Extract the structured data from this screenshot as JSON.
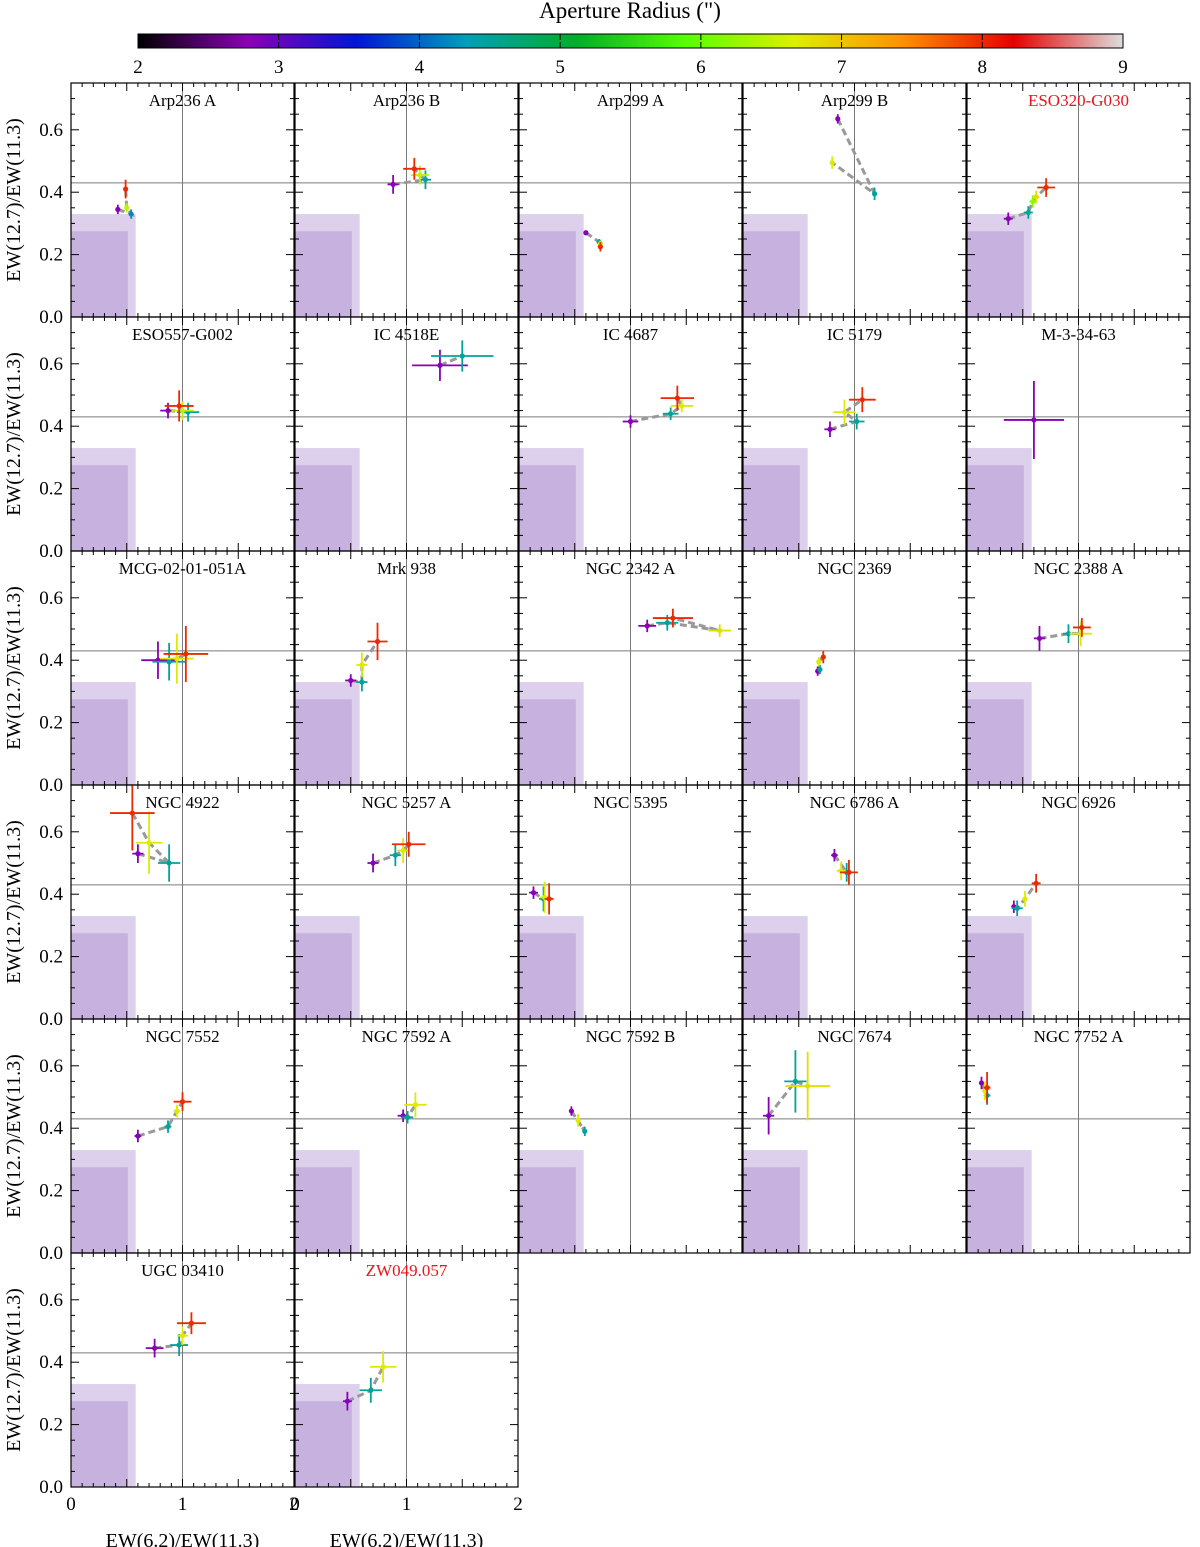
{
  "colorbar": {
    "label": "Aperture Radius (\")",
    "ticks": [
      "2",
      "3",
      "4",
      "5",
      "6",
      "7",
      "8",
      "9"
    ],
    "range": [
      2,
      9
    ],
    "colors": [
      "#000000",
      "#8b00b5",
      "#0015d8",
      "#00a0b8",
      "#00ad2a",
      "#56ff00",
      "#ddef00",
      "#ff8f00",
      "#e60000",
      "#dddddd"
    ]
  },
  "axes": {
    "xlabel": "EW(6.2)/EW(11.3)",
    "ylabel": "EW(12.7)/EW(11.3)",
    "xlim": [
      0,
      2
    ],
    "ylim": [
      0,
      0.75
    ],
    "xticks": [
      "0",
      "1",
      "2"
    ],
    "yticks": [
      "0.0",
      "0.2",
      "0.4",
      "0.6"
    ],
    "ref_x": 1.0,
    "ref_y": 0.43,
    "shade_outer": {
      "x_max": 0.58,
      "y_max": 0.33,
      "color": "#ddd0ec"
    },
    "shade_inner": {
      "x_max": 0.51,
      "y_max": 0.275,
      "color": "#c7b2df"
    },
    "connector_color": "#999999"
  },
  "chart_data": {
    "type": "scatter",
    "xlabel": "EW(6.2)/EW(11.3)",
    "ylabel": "EW(12.7)/EW(11.3)",
    "xlim": [
      0,
      2
    ],
    "ylim": [
      0,
      0.75
    ],
    "panels": [
      {
        "title": "Arp236 A",
        "title_color": "#000000",
        "points": [
          {
            "r": 2.8,
            "x": 0.42,
            "y": 0.345,
            "xerr": 0.02,
            "yerr": 0.015
          },
          {
            "r": 4.2,
            "x": 0.54,
            "y": 0.33,
            "xerr": 0.02,
            "yerr": 0.015
          },
          {
            "r": 6.5,
            "x": 0.5,
            "y": 0.35,
            "xerr": 0.02,
            "yerr": 0.015
          },
          {
            "r": 8.0,
            "x": 0.49,
            "y": 0.41,
            "xerr": 0.01,
            "yerr": 0.03
          }
        ]
      },
      {
        "title": "Arp236 B",
        "title_color": "#000000",
        "points": [
          {
            "r": 2.8,
            "x": 0.88,
            "y": 0.425,
            "xerr": 0.05,
            "yerr": 0.03
          },
          {
            "r": 4.5,
            "x": 1.17,
            "y": 0.44,
            "xerr": 0.05,
            "yerr": 0.03
          },
          {
            "r": 6.5,
            "x": 1.12,
            "y": 0.455,
            "xerr": 0.08,
            "yerr": 0.03
          },
          {
            "r": 8.0,
            "x": 1.07,
            "y": 0.475,
            "xerr": 0.1,
            "yerr": 0.035
          }
        ]
      },
      {
        "title": "Arp299 A",
        "title_color": "#000000",
        "points": [
          {
            "r": 2.8,
            "x": 0.6,
            "y": 0.27,
            "xerr": 0.01,
            "yerr": 0.005
          },
          {
            "r": 4.5,
            "x": 0.72,
            "y": 0.24,
            "xerr": 0.01,
            "yerr": 0.01
          },
          {
            "r": 6.5,
            "x": 0.73,
            "y": 0.235,
            "xerr": 0.01,
            "yerr": 0.01
          },
          {
            "r": 8.0,
            "x": 0.73,
            "y": 0.225,
            "xerr": 0.01,
            "yerr": 0.015
          }
        ]
      },
      {
        "title": "Arp299 B",
        "title_color": "#000000",
        "points": [
          {
            "r": 2.8,
            "x": 0.85,
            "y": 0.635,
            "xerr": 0.01,
            "yerr": 0.015
          },
          {
            "r": 4.5,
            "x": 1.18,
            "y": 0.395,
            "xerr": 0.01,
            "yerr": 0.02
          },
          {
            "r": 6.7,
            "x": 0.8,
            "y": 0.495,
            "xerr": 0.01,
            "yerr": 0.02
          }
        ]
      },
      {
        "title": "ESO320-G030",
        "title_color": "#e8141c",
        "points": [
          {
            "r": 2.8,
            "x": 0.37,
            "y": 0.315,
            "xerr": 0.04,
            "yerr": 0.02
          },
          {
            "r": 4.5,
            "x": 0.55,
            "y": 0.335,
            "xerr": 0.04,
            "yerr": 0.02
          },
          {
            "r": 6.2,
            "x": 0.59,
            "y": 0.37,
            "xerr": 0.03,
            "yerr": 0.02
          },
          {
            "r": 6.8,
            "x": 0.62,
            "y": 0.385,
            "xerr": 0.03,
            "yerr": 0.02
          },
          {
            "r": 8.0,
            "x": 0.71,
            "y": 0.415,
            "xerr": 0.08,
            "yerr": 0.03
          }
        ]
      },
      {
        "title": "ESO557-G002",
        "title_color": "#000000",
        "points": [
          {
            "r": 2.8,
            "x": 0.87,
            "y": 0.45,
            "xerr": 0.07,
            "yerr": 0.025
          },
          {
            "r": 4.5,
            "x": 1.05,
            "y": 0.445,
            "xerr": 0.1,
            "yerr": 0.03
          },
          {
            "r": 6.5,
            "x": 1.0,
            "y": 0.45,
            "xerr": 0.1,
            "yerr": 0.03
          },
          {
            "r": 8.0,
            "x": 0.97,
            "y": 0.465,
            "xerr": 0.13,
            "yerr": 0.05
          }
        ]
      },
      {
        "title": "IC 4518E",
        "title_color": "#000000",
        "points": [
          {
            "r": 2.8,
            "x": 1.3,
            "y": 0.595,
            "xerr": 0.25,
            "yerr": 0.05
          },
          {
            "r": 4.5,
            "x": 1.5,
            "y": 0.625,
            "xerr": 0.28,
            "yerr": 0.05
          }
        ]
      },
      {
        "title": "IC 4687",
        "title_color": "#000000",
        "points": [
          {
            "r": 2.8,
            "x": 1.0,
            "y": 0.415,
            "xerr": 0.07,
            "yerr": 0.02
          },
          {
            "r": 4.5,
            "x": 1.36,
            "y": 0.44,
            "xerr": 0.07,
            "yerr": 0.02
          },
          {
            "r": 6.7,
            "x": 1.46,
            "y": 0.465,
            "xerr": 0.1,
            "yerr": 0.02
          },
          {
            "r": 8.0,
            "x": 1.42,
            "y": 0.49,
            "xerr": 0.15,
            "yerr": 0.04
          }
        ]
      },
      {
        "title": "IC 5179",
        "title_color": "#000000",
        "points": [
          {
            "r": 2.8,
            "x": 0.78,
            "y": 0.39,
            "xerr": 0.05,
            "yerr": 0.025
          },
          {
            "r": 4.5,
            "x": 1.02,
            "y": 0.415,
            "xerr": 0.07,
            "yerr": 0.025
          },
          {
            "r": 6.7,
            "x": 0.91,
            "y": 0.445,
            "xerr": 0.1,
            "yerr": 0.04
          },
          {
            "r": 8.0,
            "x": 1.07,
            "y": 0.485,
            "xerr": 0.12,
            "yerr": 0.04
          }
        ]
      },
      {
        "title": "M-3-34-63",
        "title_color": "#000000",
        "points": [
          {
            "r": 2.8,
            "x": 0.6,
            "y": 0.42,
            "xerr": 0.27,
            "yerr": 0.125
          }
        ]
      },
      {
        "title": "MCG-02-01-051A",
        "title_color": "#000000",
        "points": [
          {
            "r": 2.8,
            "x": 0.78,
            "y": 0.4,
            "xerr": 0.15,
            "yerr": 0.06
          },
          {
            "r": 4.5,
            "x": 0.88,
            "y": 0.395,
            "xerr": 0.15,
            "yerr": 0.06
          },
          {
            "r": 6.7,
            "x": 0.95,
            "y": 0.405,
            "xerr": 0.15,
            "yerr": 0.08
          },
          {
            "r": 8.0,
            "x": 1.03,
            "y": 0.42,
            "xerr": 0.2,
            "yerr": 0.09
          }
        ]
      },
      {
        "title": "Mrk 938",
        "title_color": "#000000",
        "points": [
          {
            "r": 2.8,
            "x": 0.5,
            "y": 0.335,
            "xerr": 0.05,
            "yerr": 0.02
          },
          {
            "r": 4.5,
            "x": 0.6,
            "y": 0.33,
            "xerr": 0.05,
            "yerr": 0.03
          },
          {
            "r": 6.7,
            "x": 0.6,
            "y": 0.385,
            "xerr": 0.05,
            "yerr": 0.04
          },
          {
            "r": 8.0,
            "x": 0.74,
            "y": 0.46,
            "xerr": 0.09,
            "yerr": 0.06
          }
        ]
      },
      {
        "title": "NGC 2342 A",
        "title_color": "#000000",
        "points": [
          {
            "r": 2.8,
            "x": 1.15,
            "y": 0.51,
            "xerr": 0.08,
            "yerr": 0.02
          },
          {
            "r": 4.5,
            "x": 1.33,
            "y": 0.52,
            "xerr": 0.1,
            "yerr": 0.025
          },
          {
            "r": 6.8,
            "x": 1.8,
            "y": 0.495,
            "xerr": 0.1,
            "yerr": 0.02
          },
          {
            "r": 8.0,
            "x": 1.38,
            "y": 0.535,
            "xerr": 0.18,
            "yerr": 0.03
          }
        ]
      },
      {
        "title": "NGC 2369",
        "title_color": "#000000",
        "points": [
          {
            "r": 2.8,
            "x": 0.67,
            "y": 0.365,
            "xerr": 0.02,
            "yerr": 0.015
          },
          {
            "r": 4.5,
            "x": 0.69,
            "y": 0.37,
            "xerr": 0.02,
            "yerr": 0.015
          },
          {
            "r": 6.7,
            "x": 0.68,
            "y": 0.395,
            "xerr": 0.02,
            "yerr": 0.015
          },
          {
            "r": 8.0,
            "x": 0.72,
            "y": 0.41,
            "xerr": 0.02,
            "yerr": 0.02
          }
        ]
      },
      {
        "title": "NGC 2388 A",
        "title_color": "#000000",
        "points": [
          {
            "r": 2.8,
            "x": 0.65,
            "y": 0.47,
            "xerr": 0.05,
            "yerr": 0.04
          },
          {
            "r": 4.5,
            "x": 0.91,
            "y": 0.485,
            "xerr": 0.05,
            "yerr": 0.03
          },
          {
            "r": 6.7,
            "x": 1.02,
            "y": 0.485,
            "xerr": 0.1,
            "yerr": 0.04
          },
          {
            "r": 8.0,
            "x": 1.03,
            "y": 0.505,
            "xerr": 0.08,
            "yerr": 0.03
          }
        ]
      },
      {
        "title": "NGC 4922",
        "title_color": "#000000",
        "points": [
          {
            "r": 2.8,
            "x": 0.6,
            "y": 0.53,
            "xerr": 0.05,
            "yerr": 0.03
          },
          {
            "r": 4.5,
            "x": 0.88,
            "y": 0.5,
            "xerr": 0.1,
            "yerr": 0.06
          },
          {
            "r": 6.7,
            "x": 0.7,
            "y": 0.565,
            "xerr": 0.12,
            "yerr": 0.1
          },
          {
            "r": 8.0,
            "x": 0.55,
            "y": 0.66,
            "xerr": 0.2,
            "yerr": 0.12
          }
        ]
      },
      {
        "title": "NGC 5257 A",
        "title_color": "#000000",
        "points": [
          {
            "r": 2.8,
            "x": 0.7,
            "y": 0.5,
            "xerr": 0.05,
            "yerr": 0.03
          },
          {
            "r": 4.5,
            "x": 0.9,
            "y": 0.525,
            "xerr": 0.05,
            "yerr": 0.035
          },
          {
            "r": 6.7,
            "x": 0.97,
            "y": 0.54,
            "xerr": 0.05,
            "yerr": 0.04
          },
          {
            "r": 8.0,
            "x": 1.02,
            "y": 0.56,
            "xerr": 0.15,
            "yerr": 0.04
          }
        ]
      },
      {
        "title": "NGC 5395",
        "title_color": "#000000",
        "points": [
          {
            "r": 2.8,
            "x": 0.13,
            "y": 0.405,
            "xerr": 0.04,
            "yerr": 0.02
          },
          {
            "r": 4.5,
            "x": 0.22,
            "y": 0.385,
            "xerr": 0.04,
            "yerr": 0.04
          },
          {
            "r": 6.7,
            "x": 0.23,
            "y": 0.39,
            "xerr": 0.04,
            "yerr": 0.05
          },
          {
            "r": 8.0,
            "x": 0.27,
            "y": 0.385,
            "xerr": 0.04,
            "yerr": 0.05
          }
        ]
      },
      {
        "title": "NGC 6786 A",
        "title_color": "#000000",
        "points": [
          {
            "r": 2.8,
            "x": 0.82,
            "y": 0.525,
            "xerr": 0.03,
            "yerr": 0.02
          },
          {
            "r": 4.5,
            "x": 0.93,
            "y": 0.47,
            "xerr": 0.04,
            "yerr": 0.03
          },
          {
            "r": 6.7,
            "x": 0.88,
            "y": 0.475,
            "xerr": 0.04,
            "yerr": 0.03
          },
          {
            "r": 8.0,
            "x": 0.95,
            "y": 0.47,
            "xerr": 0.08,
            "yerr": 0.04
          }
        ]
      },
      {
        "title": "NGC 6926",
        "title_color": "#000000",
        "points": [
          {
            "r": 2.8,
            "x": 0.42,
            "y": 0.36,
            "xerr": 0.02,
            "yerr": 0.02
          },
          {
            "r": 4.5,
            "x": 0.45,
            "y": 0.355,
            "xerr": 0.05,
            "yerr": 0.025
          },
          {
            "r": 6.7,
            "x": 0.52,
            "y": 0.385,
            "xerr": 0.02,
            "yerr": 0.025
          },
          {
            "r": 8.0,
            "x": 0.62,
            "y": 0.435,
            "xerr": 0.04,
            "yerr": 0.03
          }
        ]
      },
      {
        "title": "NGC 7552",
        "title_color": "#000000",
        "points": [
          {
            "r": 2.8,
            "x": 0.6,
            "y": 0.375,
            "xerr": 0.03,
            "yerr": 0.02
          },
          {
            "r": 4.5,
            "x": 0.87,
            "y": 0.405,
            "xerr": 0.03,
            "yerr": 0.02
          },
          {
            "r": 6.7,
            "x": 0.95,
            "y": 0.455,
            "xerr": 0.03,
            "yerr": 0.02
          },
          {
            "r": 8.0,
            "x": 1.0,
            "y": 0.485,
            "xerr": 0.08,
            "yerr": 0.03
          }
        ]
      },
      {
        "title": "NGC 7592 A",
        "title_color": "#000000",
        "points": [
          {
            "r": 2.8,
            "x": 0.97,
            "y": 0.44,
            "xerr": 0.05,
            "yerr": 0.02
          },
          {
            "r": 4.5,
            "x": 1.01,
            "y": 0.435,
            "xerr": 0.05,
            "yerr": 0.02
          },
          {
            "r": 6.7,
            "x": 1.08,
            "y": 0.475,
            "xerr": 0.1,
            "yerr": 0.04
          }
        ]
      },
      {
        "title": "NGC 7592 B",
        "title_color": "#000000",
        "points": [
          {
            "r": 2.8,
            "x": 0.47,
            "y": 0.455,
            "xerr": 0.02,
            "yerr": 0.015
          },
          {
            "r": 4.5,
            "x": 0.59,
            "y": 0.39,
            "xerr": 0.02,
            "yerr": 0.015
          },
          {
            "r": 6.7,
            "x": 0.53,
            "y": 0.425,
            "xerr": 0.02,
            "yerr": 0.02
          }
        ]
      },
      {
        "title": "NGC 7674",
        "title_color": "#000000",
        "points": [
          {
            "r": 2.8,
            "x": 0.23,
            "y": 0.44,
            "xerr": 0.05,
            "yerr": 0.06
          },
          {
            "r": 4.5,
            "x": 0.47,
            "y": 0.55,
            "xerr": 0.1,
            "yerr": 0.1
          },
          {
            "r": 6.8,
            "x": 0.58,
            "y": 0.535,
            "xerr": 0.2,
            "yerr": 0.11
          }
        ]
      },
      {
        "title": "NGC 7752 A",
        "title_color": "#000000",
        "points": [
          {
            "r": 2.8,
            "x": 0.13,
            "y": 0.545,
            "xerr": 0.02,
            "yerr": 0.02
          },
          {
            "r": 4.5,
            "x": 0.18,
            "y": 0.505,
            "xerr": 0.03,
            "yerr": 0.03
          },
          {
            "r": 6.7,
            "x": 0.16,
            "y": 0.52,
            "xerr": 0.02,
            "yerr": 0.03
          },
          {
            "r": 8.0,
            "x": 0.18,
            "y": 0.53,
            "xerr": 0.03,
            "yerr": 0.05
          }
        ]
      },
      {
        "title": "UGC 03410",
        "title_color": "#000000",
        "points": [
          {
            "r": 2.8,
            "x": 0.75,
            "y": 0.445,
            "xerr": 0.08,
            "yerr": 0.03
          },
          {
            "r": 4.5,
            "x": 0.97,
            "y": 0.455,
            "xerr": 0.08,
            "yerr": 0.035
          },
          {
            "r": 6.7,
            "x": 1.0,
            "y": 0.485,
            "xerr": 0.05,
            "yerr": 0.03
          },
          {
            "r": 8.0,
            "x": 1.08,
            "y": 0.525,
            "xerr": 0.13,
            "yerr": 0.035
          }
        ]
      },
      {
        "title": "ZW049.057",
        "title_color": "#e8141c",
        "points": [
          {
            "r": 2.8,
            "x": 0.47,
            "y": 0.275,
            "xerr": 0.04,
            "yerr": 0.03
          },
          {
            "r": 4.5,
            "x": 0.68,
            "y": 0.31,
            "xerr": 0.1,
            "yerr": 0.04
          },
          {
            "r": 6.7,
            "x": 0.79,
            "y": 0.385,
            "xerr": 0.12,
            "yerr": 0.05
          }
        ]
      }
    ]
  }
}
